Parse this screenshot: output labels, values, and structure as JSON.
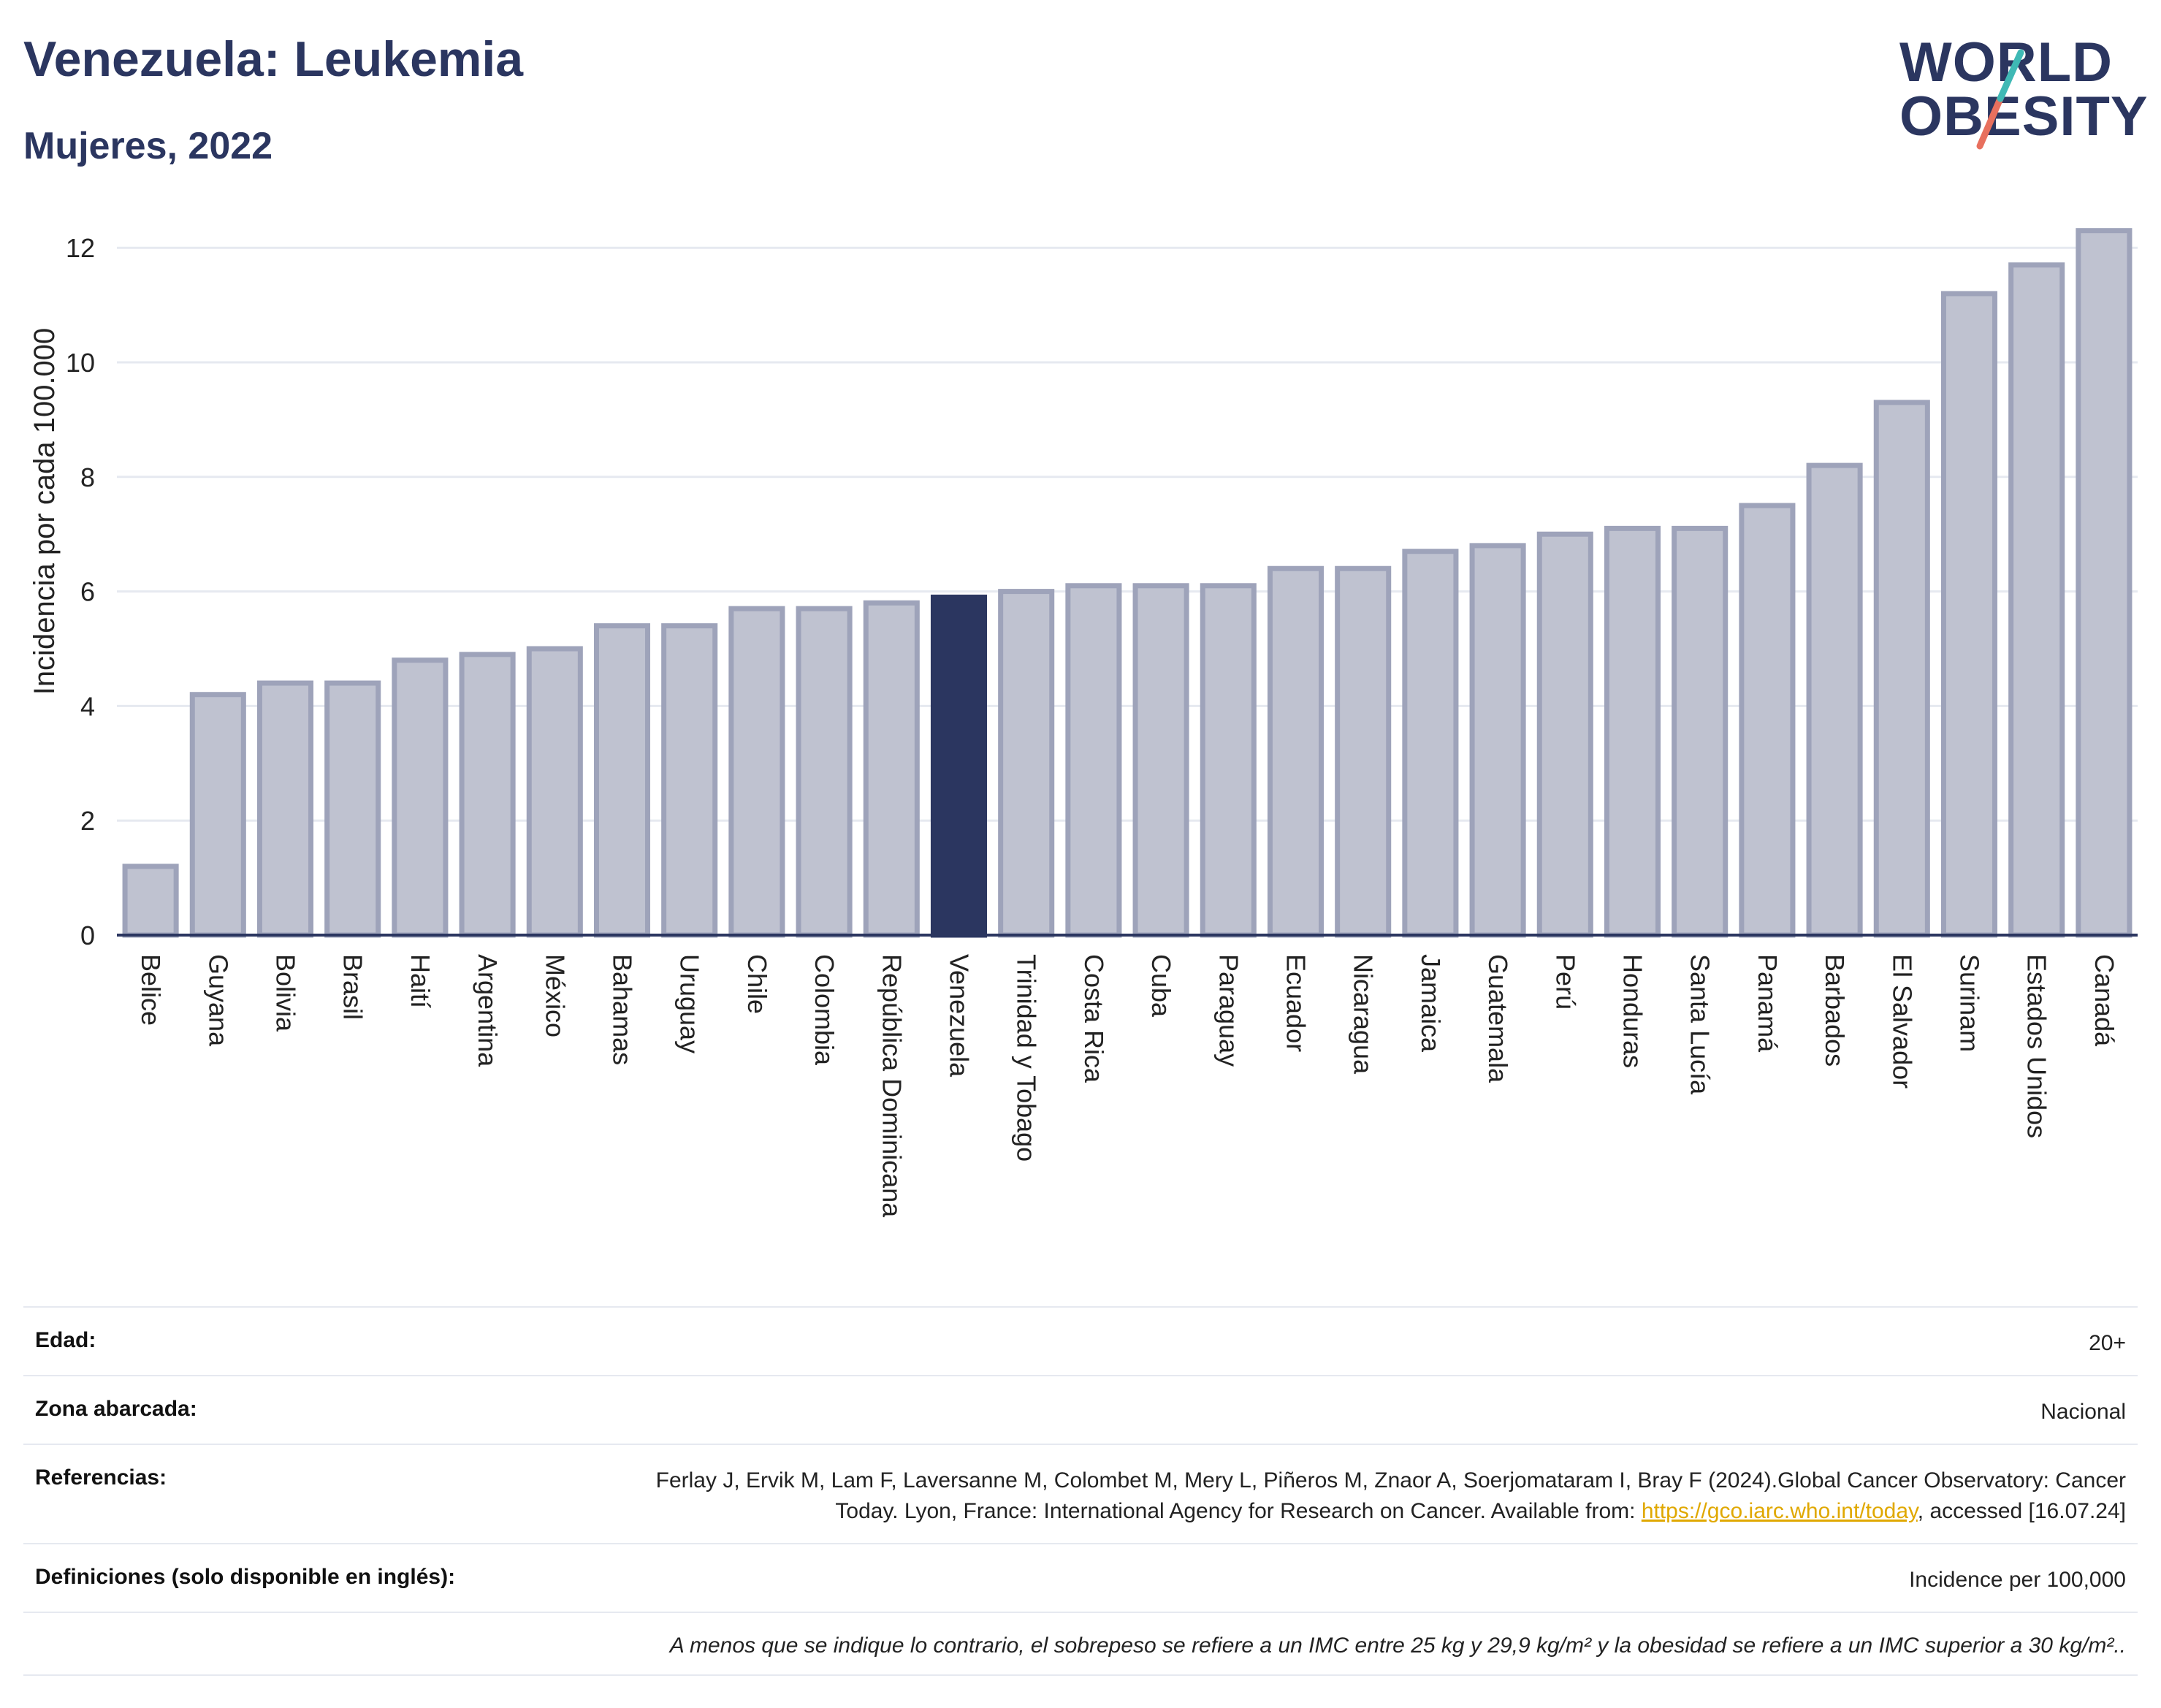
{
  "header": {
    "title": "Venezuela: Leukemia",
    "subtitle": "Mujeres, 2022",
    "logo_line1": "WORLD",
    "logo_line2": "OBESITY"
  },
  "chart_data": {
    "type": "bar",
    "title": "Venezuela: Leukemia",
    "subtitle": "Mujeres, 2022",
    "ylabel": "Incidencia por cada 100.000",
    "xlabel": "",
    "ylim": [
      0,
      12.5
    ],
    "yticks": [
      0,
      2,
      4,
      6,
      8,
      10,
      12
    ],
    "grid": true,
    "highlight": "Venezuela",
    "colors": {
      "bar": "#bfc2d0",
      "bar_border": "#9ea3ba",
      "highlight": "#2b3660",
      "grid": "#e6e9f0",
      "axis": "#2b3660"
    },
    "categories": [
      "Belice",
      "Guyana",
      "Bolivia",
      "Brasil",
      "Haití",
      "Argentina",
      "México",
      "Bahamas",
      "Uruguay",
      "Chile",
      "Colombia",
      "República Dominicana",
      "Venezuela",
      "Trinidad y Tobago",
      "Costa Rica",
      "Cuba",
      "Paraguay",
      "Ecuador",
      "Nicaragua",
      "Jamaica",
      "Guatemala",
      "Perú",
      "Honduras",
      "Santa Lucía",
      "Panamá",
      "Barbados",
      "El Salvador",
      "Surinam",
      "Estados Unidos",
      "Canadá"
    ],
    "values": [
      1.2,
      4.2,
      4.4,
      4.4,
      4.8,
      4.9,
      5.0,
      5.4,
      5.4,
      5.7,
      5.7,
      5.8,
      5.9,
      6.0,
      6.1,
      6.1,
      6.1,
      6.4,
      6.4,
      6.7,
      6.8,
      7.0,
      7.1,
      7.1,
      7.5,
      8.2,
      9.3,
      11.2,
      11.7,
      12.3
    ]
  },
  "info": {
    "age_label": "Edad:",
    "age_value": "20+",
    "zone_label": "Zona abarcada:",
    "zone_value": "Nacional",
    "refs_label": "Referencias:",
    "refs_text_before": "Ferlay J, Ervik M, Lam F, Laversanne M, Colombet M, Mery L, Piñeros M, Znaor A, Soerjomataram I, Bray F (2024).Global Cancer Observatory: Cancer Today. Lyon, France: International Agency for Research on Cancer. Available from: ",
    "refs_link": "https://gco.iarc.who.int/today",
    "refs_text_after": ", accessed [16.07.24]",
    "defs_label": "Definiciones (solo disponible en inglés):",
    "defs_value": "Incidence per 100,000",
    "note": "A menos que se indique lo contrario, el sobrepeso se refiere a un IMC entre 25 kg y 29,9 kg/m² y la obesidad se refiere a un IMC superior a 30 kg/m².."
  }
}
